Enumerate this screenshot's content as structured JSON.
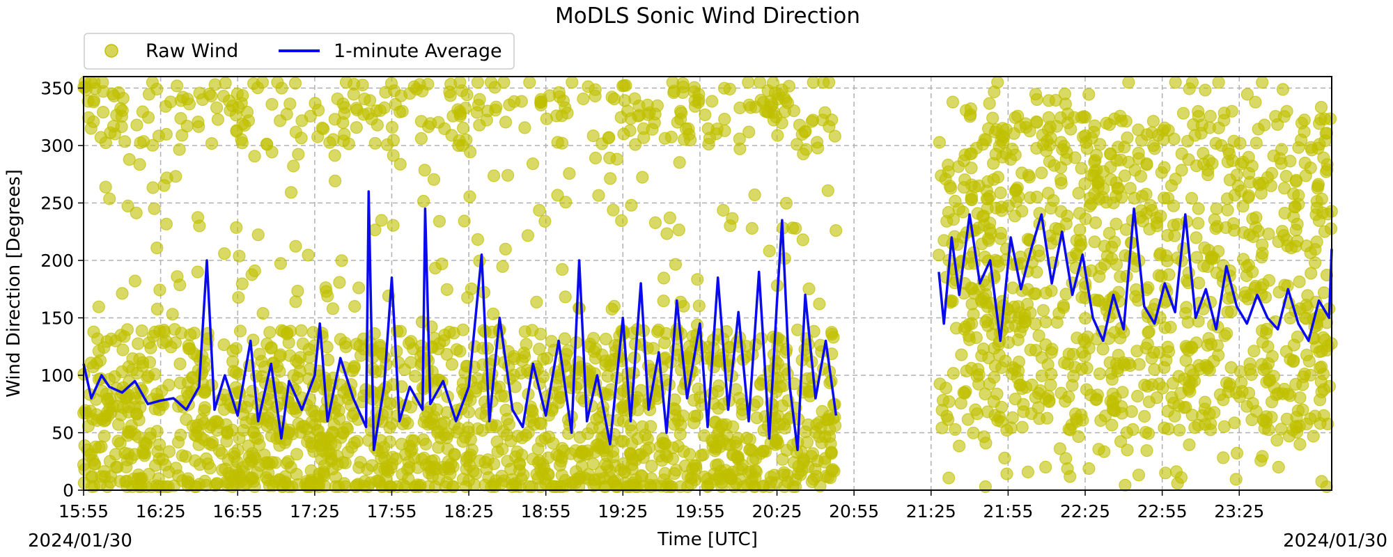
{
  "chart_data": {
    "type": "scatter",
    "title": "MoDLS Sonic Wind Direction",
    "xlabel": "Time [UTC]",
    "ylabel": "Wind Direction [Degrees]",
    "x_start_date": "2024/01/30",
    "x_end_date": "2024/01/30",
    "xlim": [
      "15:55",
      "00:01"
    ],
    "ylim": [
      0,
      360
    ],
    "x_ticks": [
      "15:55",
      "16:25",
      "16:55",
      "17:25",
      "17:55",
      "18:25",
      "18:55",
      "19:25",
      "19:55",
      "20:25",
      "20:55",
      "21:25",
      "21:55",
      "22:25",
      "22:55",
      "23:25"
    ],
    "y_ticks": [
      0,
      50,
      100,
      150,
      200,
      250,
      300,
      350
    ],
    "grid": true,
    "legend_position": "top-left (outside above plot)",
    "data_gap": [
      "20:48",
      "21:28"
    ],
    "series": [
      {
        "name": "Raw Wind",
        "style": "scatter",
        "color": "#bfbf00",
        "segments": [
          {
            "start": "15:55",
            "end": "20:48",
            "typical_range": [
              0,
              140
            ],
            "scattered_up_to": 360
          },
          {
            "start": "21:28",
            "end": "00:01",
            "typical_range": [
              50,
              330
            ],
            "scattered_range": [
              0,
              360
            ]
          }
        ]
      },
      {
        "name": "1-minute Average",
        "style": "line",
        "color": "#0a0aee",
        "points": [
          [
            "15:55",
            110
          ],
          [
            "15:58",
            80
          ],
          [
            "16:02",
            100
          ],
          [
            "16:05",
            90
          ],
          [
            "16:10",
            85
          ],
          [
            "16:15",
            95
          ],
          [
            "16:20",
            75
          ],
          [
            "16:25",
            78
          ],
          [
            "16:30",
            80
          ],
          [
            "16:35",
            70
          ],
          [
            "16:40",
            90
          ],
          [
            "16:43",
            200
          ],
          [
            "16:46",
            70
          ],
          [
            "16:50",
            100
          ],
          [
            "16:55",
            65
          ],
          [
            "17:00",
            130
          ],
          [
            "17:03",
            60
          ],
          [
            "17:08",
            110
          ],
          [
            "17:12",
            45
          ],
          [
            "17:15",
            95
          ],
          [
            "17:20",
            70
          ],
          [
            "17:25",
            100
          ],
          [
            "17:27",
            145
          ],
          [
            "17:30",
            60
          ],
          [
            "17:35",
            115
          ],
          [
            "17:40",
            80
          ],
          [
            "17:45",
            55
          ],
          [
            "17:46",
            260
          ],
          [
            "17:48",
            35
          ],
          [
            "17:52",
            90
          ],
          [
            "17:55",
            185
          ],
          [
            "17:58",
            60
          ],
          [
            "18:02",
            90
          ],
          [
            "18:07",
            70
          ],
          [
            "18:08",
            245
          ],
          [
            "18:10",
            75
          ],
          [
            "18:15",
            95
          ],
          [
            "18:20",
            60
          ],
          [
            "18:25",
            90
          ],
          [
            "18:30",
            205
          ],
          [
            "18:33",
            60
          ],
          [
            "18:37",
            150
          ],
          [
            "18:42",
            70
          ],
          [
            "18:46",
            55
          ],
          [
            "18:50",
            110
          ],
          [
            "18:55",
            65
          ],
          [
            "19:00",
            130
          ],
          [
            "19:05",
            50
          ],
          [
            "19:08",
            200
          ],
          [
            "19:11",
            60
          ],
          [
            "19:15",
            100
          ],
          [
            "19:20",
            40
          ],
          [
            "19:25",
            150
          ],
          [
            "19:28",
            60
          ],
          [
            "19:32",
            180
          ],
          [
            "19:35",
            70
          ],
          [
            "19:39",
            120
          ],
          [
            "19:42",
            50
          ],
          [
            "19:46",
            165
          ],
          [
            "19:50",
            80
          ],
          [
            "19:55",
            145
          ],
          [
            "19:58",
            55
          ],
          [
            "20:02",
            185
          ],
          [
            "20:06",
            70
          ],
          [
            "20:10",
            155
          ],
          [
            "20:14",
            60
          ],
          [
            "20:18",
            190
          ],
          [
            "20:22",
            45
          ],
          [
            "20:25",
            165
          ],
          [
            "20:27",
            235
          ],
          [
            "20:30",
            90
          ],
          [
            "20:33",
            35
          ],
          [
            "20:36",
            170
          ],
          [
            "20:40",
            80
          ],
          [
            "20:44",
            130
          ],
          [
            "20:48",
            65
          ],
          [
            "21:28",
            190
          ],
          [
            "21:30",
            145
          ],
          [
            "21:33",
            220
          ],
          [
            "21:36",
            170
          ],
          [
            "21:40",
            240
          ],
          [
            "21:44",
            180
          ],
          [
            "21:48",
            200
          ],
          [
            "21:52",
            130
          ],
          [
            "21:56",
            220
          ],
          [
            "22:00",
            175
          ],
          [
            "22:04",
            210
          ],
          [
            "22:08",
            240
          ],
          [
            "22:12",
            180
          ],
          [
            "22:16",
            225
          ],
          [
            "22:20",
            170
          ],
          [
            "22:24",
            205
          ],
          [
            "22:28",
            150
          ],
          [
            "22:32",
            130
          ],
          [
            "22:36",
            170
          ],
          [
            "22:40",
            140
          ],
          [
            "22:44",
            245
          ],
          [
            "22:48",
            160
          ],
          [
            "22:52",
            145
          ],
          [
            "22:56",
            180
          ],
          [
            "23:00",
            155
          ],
          [
            "23:04",
            240
          ],
          [
            "23:08",
            150
          ],
          [
            "23:12",
            175
          ],
          [
            "23:16",
            140
          ],
          [
            "23:20",
            195
          ],
          [
            "23:24",
            160
          ],
          [
            "23:28",
            145
          ],
          [
            "23:32",
            170
          ],
          [
            "23:36",
            150
          ],
          [
            "23:40",
            140
          ],
          [
            "23:44",
            175
          ],
          [
            "23:48",
            145
          ],
          [
            "23:52",
            130
          ],
          [
            "23:56",
            165
          ],
          [
            "00:00",
            150
          ],
          [
            "00:01",
            210
          ]
        ]
      }
    ]
  }
}
